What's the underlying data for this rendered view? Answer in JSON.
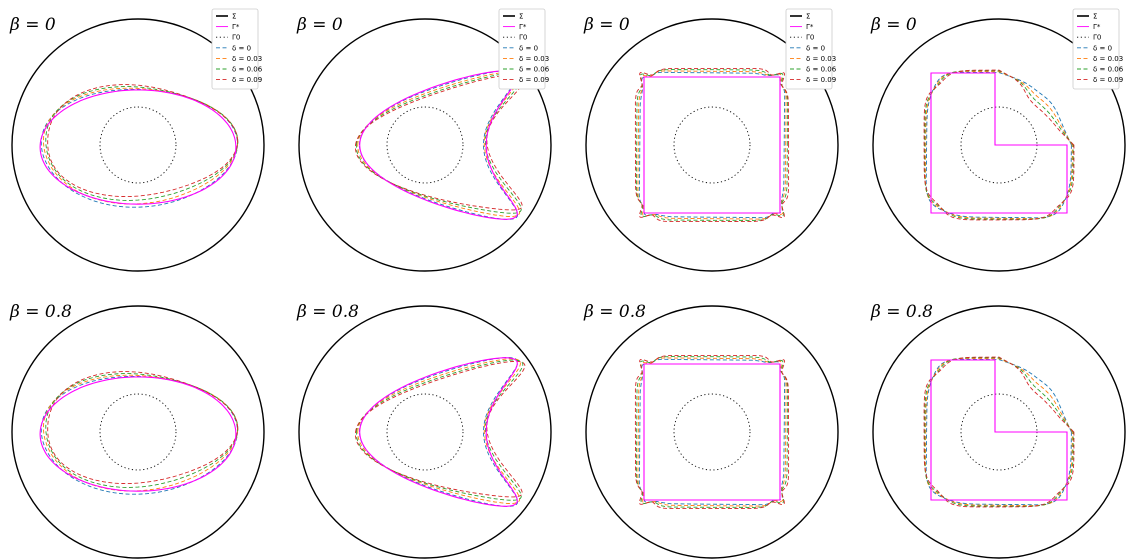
{
  "figure": {
    "panel_titles": [
      "β = 0",
      "β = 0",
      "β = 0",
      "β = 0",
      "β = 0.8",
      "β = 0.8",
      "β = 0.8",
      "β = 0.8"
    ],
    "legend": [
      {
        "label": "Σ",
        "color": "#000000",
        "style": "solid"
      },
      {
        "label": "Γ*",
        "color": "#ff00ff",
        "style": "solid"
      },
      {
        "label": "Γ0",
        "color": "#000000",
        "style": "dotted"
      },
      {
        "label": "δ = 0",
        "color": "#1f77b4",
        "style": "dashed"
      },
      {
        "label": "δ = 0.03",
        "color": "#ff7f0e",
        "style": "dashed"
      },
      {
        "label": "δ = 0.06",
        "color": "#2ca02c",
        "style": "dashed"
      },
      {
        "label": "δ = 0.09",
        "color": "#d62728",
        "style": "dashed"
      }
    ]
  },
  "chart_data": [
    {
      "type": "line",
      "title": "β = 0",
      "shape": "ellipse",
      "beta": 0,
      "deltas": [
        0,
        0.03,
        0.06,
        0.09
      ]
    },
    {
      "type": "line",
      "title": "β = 0",
      "shape": "kite",
      "beta": 0,
      "deltas": [
        0,
        0.03,
        0.06,
        0.09
      ]
    },
    {
      "type": "line",
      "title": "β = 0",
      "shape": "square",
      "beta": 0,
      "deltas": [
        0,
        0.03,
        0.06,
        0.09
      ]
    },
    {
      "type": "line",
      "title": "β = 0",
      "shape": "L-shape",
      "beta": 0,
      "deltas": [
        0,
        0.03,
        0.06,
        0.09
      ]
    },
    {
      "type": "line",
      "title": "β = 0.8",
      "shape": "ellipse",
      "beta": 0.8,
      "deltas": [
        0,
        0.03,
        0.06,
        0.09
      ]
    },
    {
      "type": "line",
      "title": "β = 0.8",
      "shape": "kite",
      "beta": 0.8,
      "deltas": [
        0,
        0.03,
        0.06,
        0.09
      ]
    },
    {
      "type": "line",
      "title": "β = 0.8",
      "shape": "square",
      "beta": 0.8,
      "deltas": [
        0,
        0.03,
        0.06,
        0.09
      ]
    },
    {
      "type": "line",
      "title": "β = 0.8",
      "shape": "L-shape",
      "beta": 0.8,
      "deltas": [
        0,
        0.03,
        0.06,
        0.09
      ]
    }
  ]
}
